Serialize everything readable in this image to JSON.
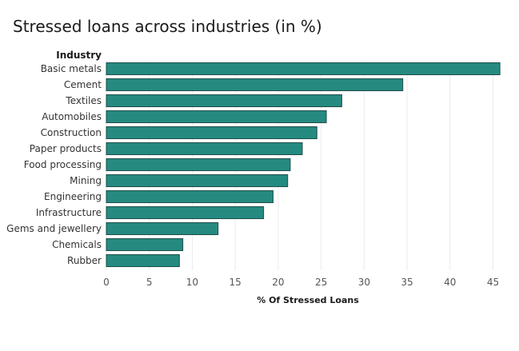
{
  "page": {
    "title": "Stressed loans across industries (in %)"
  },
  "chart_data": {
    "type": "bar",
    "orientation": "horizontal",
    "title": "Stressed loans across industries (in %)",
    "ylabel": "Industry",
    "xlabel": "% Of Stressed Loans",
    "categories": [
      "Basic metals",
      "Cement",
      "Textiles",
      "Automobiles",
      "Construction",
      "Paper products",
      "Food processing",
      "Mining",
      "Engineering",
      "Infrastructure",
      "Gems and jewellery",
      "Chemicals",
      "Rubber"
    ],
    "values": [
      45.8,
      34.5,
      27.4,
      25.6,
      24.5,
      22.8,
      21.4,
      21.1,
      19.4,
      18.3,
      13.0,
      8.9,
      8.5
    ],
    "xlim": [
      0,
      47
    ],
    "xticks": [
      0,
      5,
      10,
      15,
      20,
      25,
      30,
      35,
      40,
      45
    ],
    "grid": true,
    "bar_color": "#258a80",
    "bar_edge_color": "#1f4f4a"
  }
}
